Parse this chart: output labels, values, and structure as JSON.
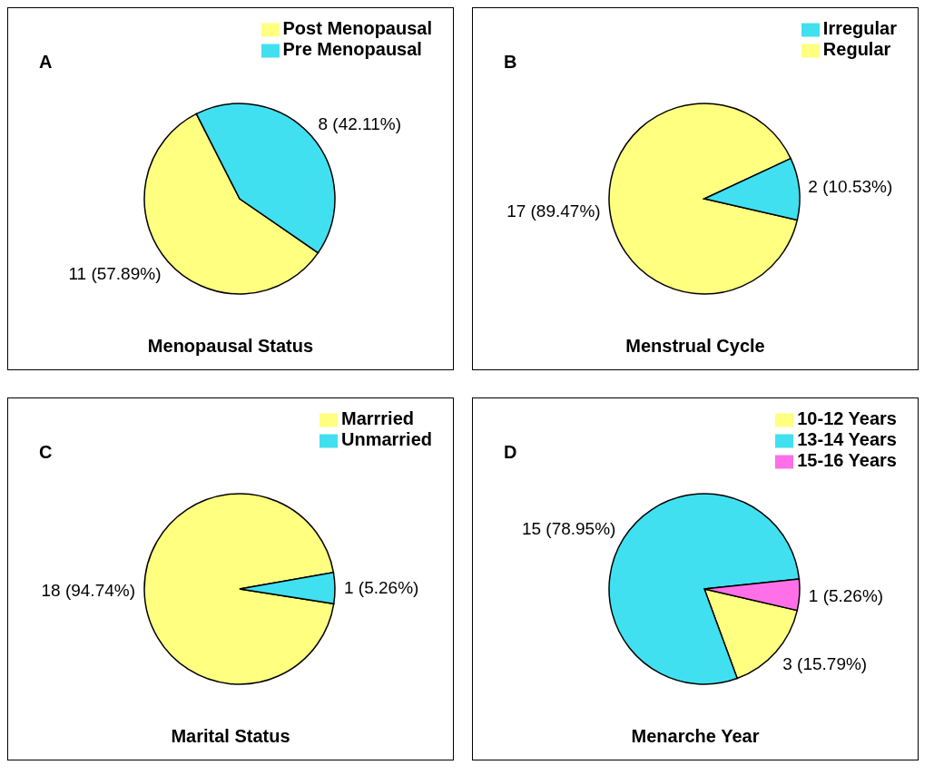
{
  "chart_data": [
    {
      "type": "pie",
      "title": "Menopausal Status",
      "annotations": [
        "A"
      ],
      "categories": [
        "Post Menopausal",
        "Pre Menopausal"
      ],
      "values": [
        11,
        8
      ],
      "colors": [
        "#ffff80",
        "#40e0f0"
      ],
      "value_labels": [
        "11 (57.89%)",
        "8 (42.11%)"
      ],
      "legend": "top right"
    },
    {
      "type": "pie",
      "title": "Menstrual Cycle",
      "annotations": [
        "B"
      ],
      "categories": [
        "Regular",
        "Irregular"
      ],
      "values": [
        17,
        2
      ],
      "colors": [
        "#ffff80",
        "#40e0f0"
      ],
      "value_labels": [
        "17 (89.47%)",
        "2 (10.53%)"
      ],
      "legend": "top right"
    },
    {
      "type": "pie",
      "title": "Marital Status",
      "annotations": [
        "C"
      ],
      "categories": [
        "Marrried",
        "Unmarried"
      ],
      "values": [
        18,
        1
      ],
      "colors": [
        "#ffff80",
        "#40e0f0"
      ],
      "value_labels": [
        "18 (94.74%)",
        "1 (5.26%)"
      ],
      "legend": "top right"
    },
    {
      "type": "pie",
      "title": "Menarche Year",
      "annotations": [
        "D"
      ],
      "categories": [
        "10-12 Years",
        "13-14 Years",
        "15-16 Years"
      ],
      "values": [
        3,
        15,
        1
      ],
      "colors": [
        "#ffff80",
        "#40e0f0",
        "#ff70e8"
      ],
      "value_labels": [
        "3 (15.79%)",
        "15 (78.95%)",
        "1 (5.26%)"
      ],
      "legend": "top right"
    }
  ]
}
